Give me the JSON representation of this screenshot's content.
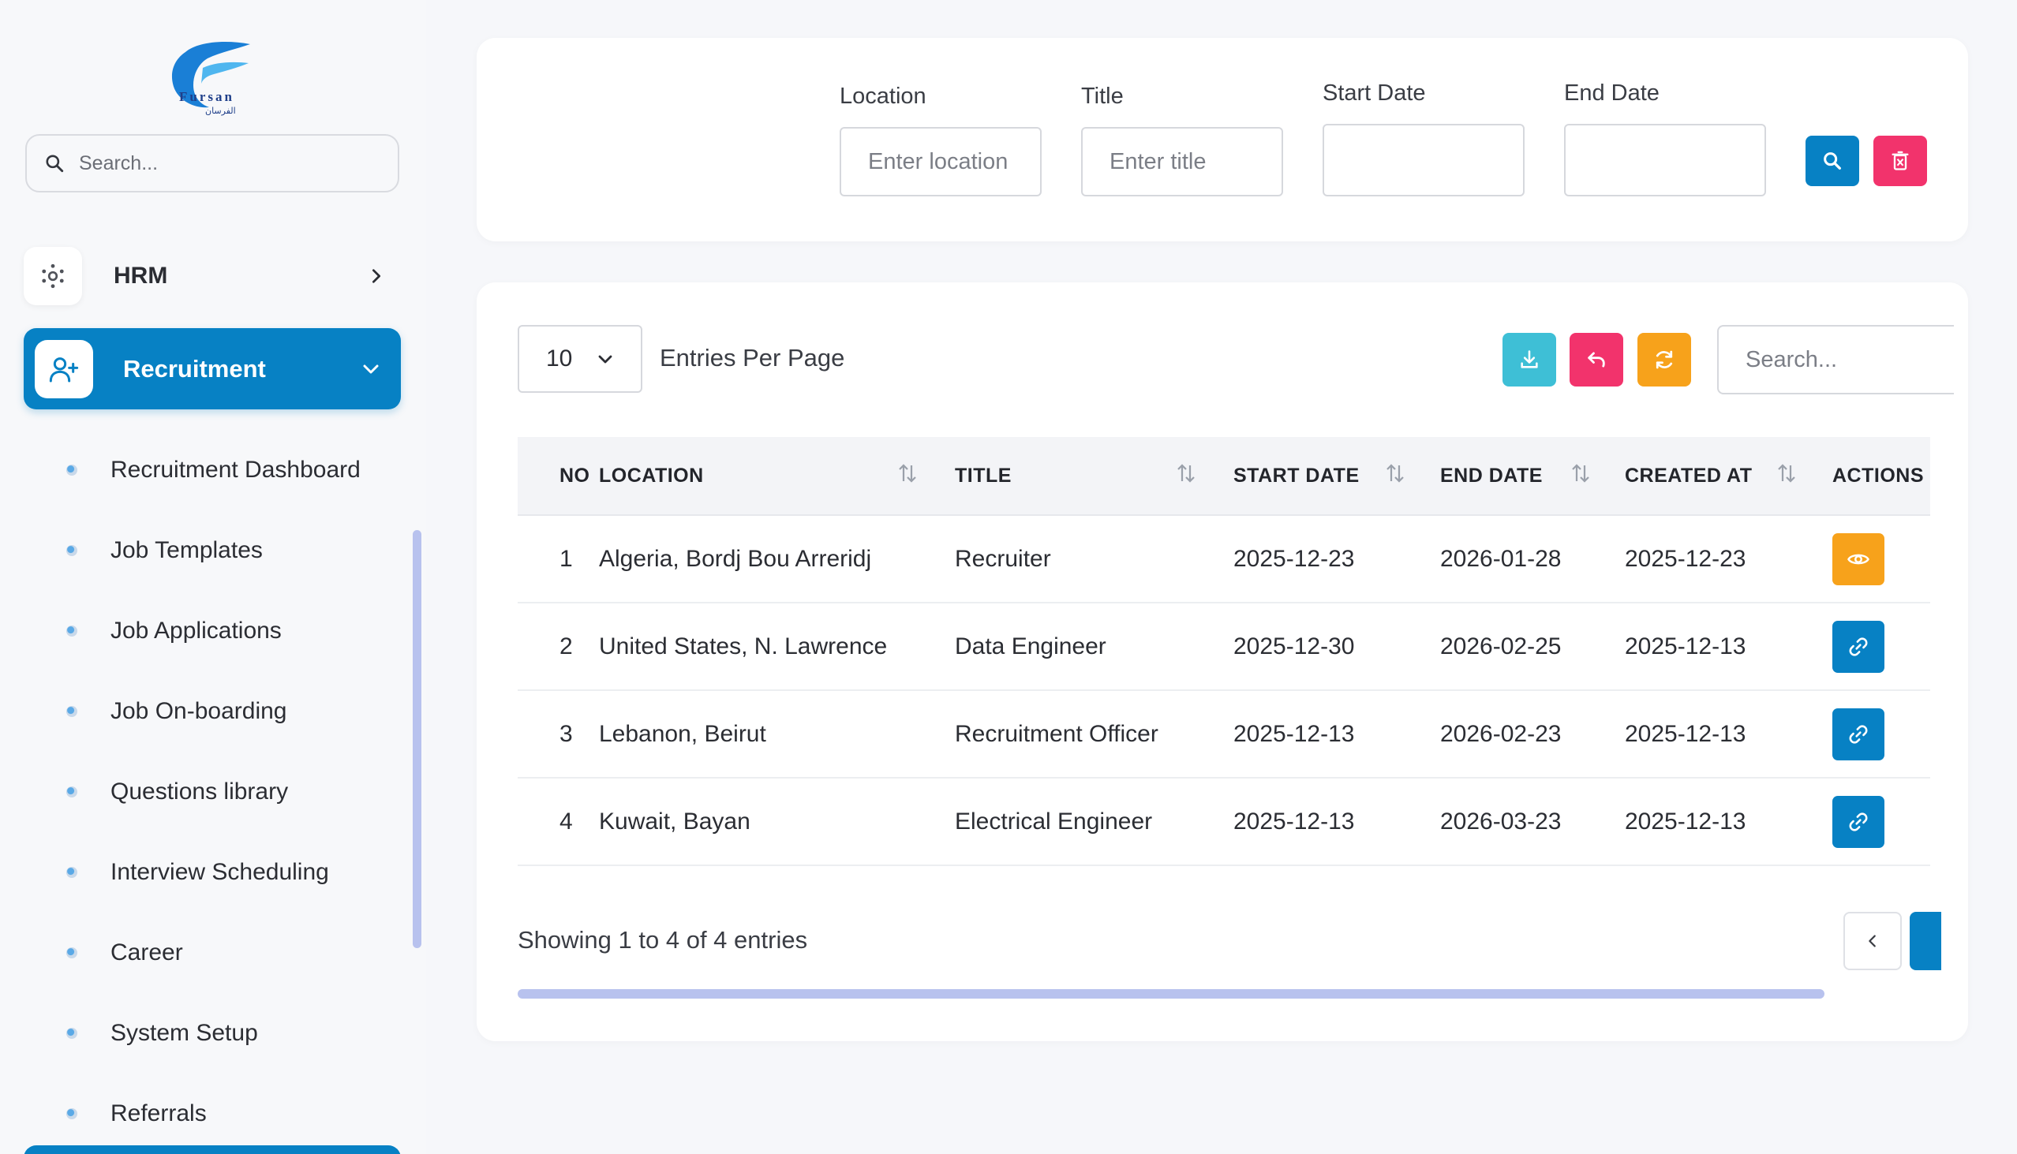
{
  "brand": {
    "logo_text": "Fursan",
    "logo_subtext": "الفرسان"
  },
  "sidebar": {
    "search_placeholder": "Search...",
    "hrm_label": "HRM",
    "recruitment_label": "Recruitment",
    "submenu": [
      "Recruitment Dashboard",
      "Job Templates",
      "Job Applications",
      "Job On-boarding",
      "Questions library",
      "Interview Scheduling",
      "Career",
      "System Setup",
      "Referrals"
    ]
  },
  "filters": {
    "location_label": "Location",
    "location_placeholder": "Enter location",
    "title_label": "Title",
    "title_placeholder": "Enter title",
    "start_label": "Start Date",
    "end_label": "End Date"
  },
  "table_controls": {
    "entries_value": "10",
    "entries_label": "Entries Per Page",
    "search_placeholder": "Search..."
  },
  "table": {
    "headers": [
      "NO",
      "LOCATION",
      "TITLE",
      "START DATE",
      "END DATE",
      "CREATED AT",
      "ACTIONS"
    ],
    "rows": [
      {
        "no": "1",
        "location": "Algeria, Bordj Bou Arreridj",
        "title": "Recruiter",
        "start": "2025-12-23",
        "end": "2026-01-28",
        "created": "2025-12-23",
        "action": "view"
      },
      {
        "no": "2",
        "location": "United States, N. Lawrence",
        "title": "Data Engineer",
        "start": "2025-12-30",
        "end": "2026-02-25",
        "created": "2025-12-13",
        "action": "link"
      },
      {
        "no": "3",
        "location": "Lebanon, Beirut",
        "title": "Recruitment Officer",
        "start": "2025-12-13",
        "end": "2026-02-23",
        "created": "2025-12-13",
        "action": "link"
      },
      {
        "no": "4",
        "location": "Kuwait, Bayan",
        "title": "Electrical Engineer",
        "start": "2025-12-13",
        "end": "2026-03-23",
        "created": "2025-12-13",
        "action": "link"
      }
    ]
  },
  "footer": {
    "showing": "Showing 1 to 4 of 4 entries"
  },
  "colors": {
    "primary": "#0781c4",
    "pink": "#f2336c",
    "orange": "#f7a21b",
    "teal": "#3ebfd6"
  }
}
